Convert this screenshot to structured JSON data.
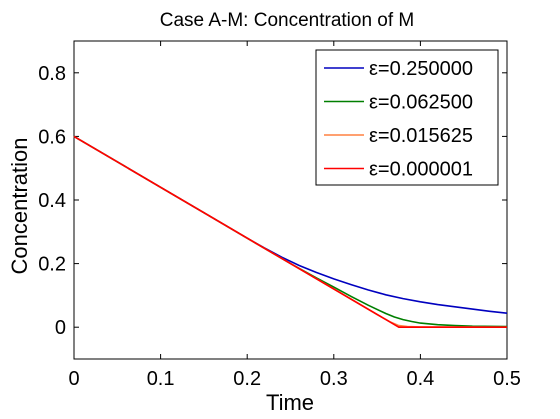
{
  "chart_data": {
    "type": "line",
    "title": "Case A-M: Concentration of M",
    "xlabel": "Time",
    "ylabel": "Concentration",
    "xlim": [
      0,
      0.5
    ],
    "ylim": [
      -0.1,
      0.9
    ],
    "xticks": [
      0,
      0.1,
      0.2,
      0.3,
      0.4,
      0.5
    ],
    "xtick_labels": [
      "0",
      "0.1",
      "0.2",
      "0.3",
      "0.4",
      "0.5"
    ],
    "yticks": [
      0,
      0.2,
      0.4,
      0.6,
      0.8
    ],
    "ytick_labels": [
      "0",
      "0.2",
      "0.4",
      "0.6",
      "0.8"
    ],
    "grid": false,
    "legend_position": "top-right",
    "series": [
      {
        "name": "ε=0.250000",
        "color": "#0000bf",
        "x": [
          0,
          0.05,
          0.1,
          0.15,
          0.2,
          0.22,
          0.24,
          0.26,
          0.28,
          0.3,
          0.32,
          0.34,
          0.36,
          0.38,
          0.4,
          0.42,
          0.44,
          0.46,
          0.48,
          0.5
        ],
        "y": [
          0.6,
          0.52,
          0.44,
          0.36,
          0.28,
          0.249,
          0.22,
          0.194,
          0.172,
          0.152,
          0.134,
          0.117,
          0.102,
          0.09,
          0.08,
          0.071,
          0.064,
          0.057,
          0.05,
          0.044
        ]
      },
      {
        "name": "ε=0.062500",
        "color": "#007f00",
        "x": [
          0,
          0.05,
          0.1,
          0.15,
          0.2,
          0.25,
          0.28,
          0.3,
          0.32,
          0.34,
          0.36,
          0.37,
          0.38,
          0.39,
          0.4,
          0.42,
          0.44,
          0.46,
          0.5
        ],
        "y": [
          0.6,
          0.52,
          0.44,
          0.36,
          0.28,
          0.2,
          0.155,
          0.126,
          0.097,
          0.069,
          0.043,
          0.032,
          0.024,
          0.018,
          0.013,
          0.008,
          0.005,
          0.003,
          0.002
        ]
      },
      {
        "name": "ε=0.015625",
        "color": "#ff8040",
        "x": [
          0,
          0.05,
          0.1,
          0.15,
          0.2,
          0.25,
          0.3,
          0.35,
          0.365,
          0.375,
          0.385,
          0.4,
          0.5
        ],
        "y": [
          0.6,
          0.52,
          0.44,
          0.36,
          0.28,
          0.2,
          0.12,
          0.04,
          0.017,
          0.005,
          0.002,
          0.001,
          0.0
        ]
      },
      {
        "name": "ε=0.000001",
        "color": "#ff0000",
        "x": [
          0,
          0.375,
          0.5
        ],
        "y": [
          0.6,
          0.0,
          0.0
        ]
      }
    ]
  }
}
